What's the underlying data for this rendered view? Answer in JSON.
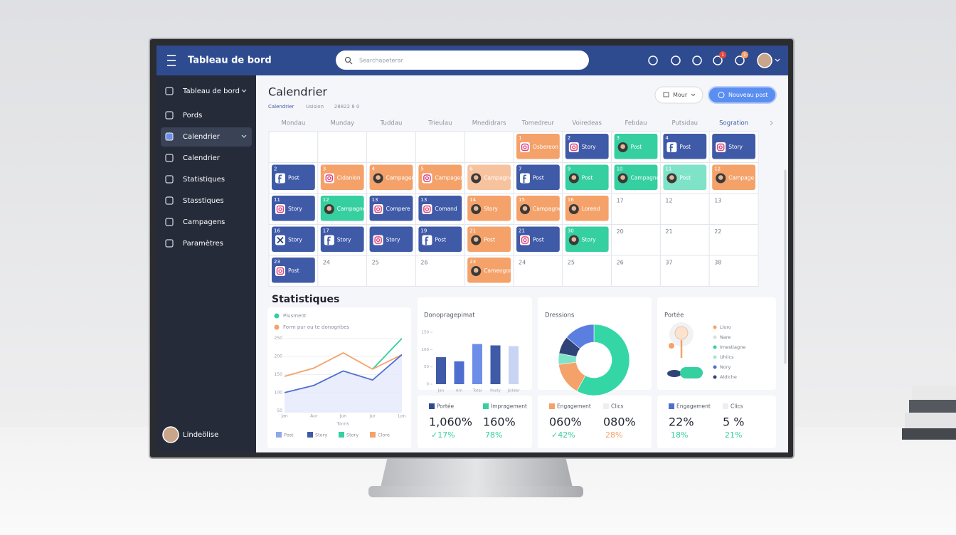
{
  "header": {
    "title": "Tableau de bord",
    "search_placeholder": "Searchapeterar",
    "badges": [
      "1",
      "1"
    ]
  },
  "sidebar": {
    "items": [
      "Tableau de bord",
      "Pords",
      "Calendrier",
      "Calendrier",
      "Statistiques",
      "Stasstiques",
      "Campagens",
      "Paramètres"
    ],
    "active": 2,
    "user": "Lindeölise"
  },
  "calendar": {
    "title": "Calendrier",
    "breadcrumb": [
      "Calendrier",
      "Usision",
      "28822 8 0"
    ],
    "view_button": "Mour",
    "new_button": "Nouveau post",
    "days": [
      "Mondau",
      "Munday",
      "Tuddau",
      "Trieulau",
      "Mnedidrars",
      "Tomedreur",
      "Voiredeas",
      "Febdau",
      "Putsidau",
      "Sogration"
    ],
    "rows": [
      [
        null,
        null,
        null,
        null,
        null,
        {
          "day": "1",
          "label": "Osbereon",
          "kind": "orange",
          "icon": "ig"
        },
        {
          "day": "2",
          "label": "Story",
          "kind": "blue",
          "icon": "ig"
        },
        {
          "day": "3",
          "label": "Post",
          "kind": "teal",
          "icon": "avatar"
        },
        {
          "day": "4",
          "label": "Post",
          "kind": "blue",
          "icon": "fb"
        },
        {
          "label": "Story",
          "kind": "blue",
          "icon": "ig"
        }
      ],
      [
        {
          "day": "2",
          "label": "Post",
          "kind": "blue",
          "icon": "fb"
        },
        {
          "day": "3",
          "label": "Cidanion",
          "kind": "orange",
          "icon": "ig"
        },
        {
          "day": "4",
          "label": "Campagen",
          "kind": "orange",
          "icon": "avatar"
        },
        {
          "day": "5",
          "label": "Campagem",
          "kind": "orange",
          "icon": "ig"
        },
        {
          "day": "6",
          "label": "Campagne",
          "kind": "peach",
          "icon": "avatar"
        },
        {
          "day": "7",
          "label": "Post",
          "kind": "blue",
          "icon": "fb"
        },
        {
          "day": "9",
          "label": "Post",
          "kind": "teal",
          "icon": "avatar"
        },
        {
          "day": "10",
          "label": "Campagne",
          "kind": "teal",
          "icon": "avatar"
        },
        {
          "day": "11",
          "label": "Post",
          "kind": "mint",
          "icon": "avatar"
        },
        {
          "day": "12",
          "label": "Campage",
          "kind": "orange",
          "icon": "avatar"
        }
      ],
      [
        {
          "day": "11",
          "label": "Story",
          "kind": "blue",
          "icon": "ig"
        },
        {
          "day": "12",
          "label": "Campagne",
          "kind": "teal",
          "icon": "avatar"
        },
        {
          "day": "13",
          "label": "Compere",
          "kind": "blue",
          "icon": "ig"
        },
        {
          "day": "13",
          "label": "Comand",
          "kind": "blue",
          "icon": "ig"
        },
        {
          "day": "14",
          "label": "Story",
          "kind": "orange",
          "icon": "avatar"
        },
        {
          "day": "15",
          "label": "Campagne",
          "kind": "orange",
          "icon": "avatar"
        },
        {
          "day": "16",
          "label": "Lorend",
          "kind": "orange",
          "icon": "avatar"
        },
        {
          "day": "17"
        },
        {
          "day": "12"
        },
        {
          "day": "13"
        }
      ],
      [
        {
          "day": "16",
          "label": "Story",
          "kind": "blue",
          "icon": "x"
        },
        {
          "day": "17",
          "label": "Story",
          "kind": "blue",
          "icon": "fb"
        },
        {
          "label": "Story",
          "kind": "blue",
          "icon": "ig"
        },
        {
          "day": "19",
          "label": "Post",
          "kind": "blue",
          "icon": "fb"
        },
        {
          "day": "21",
          "label": "Post",
          "kind": "orange",
          "icon": "avatar"
        },
        {
          "day": "21",
          "label": "Post",
          "kind": "blue",
          "icon": "ig"
        },
        {
          "day": "30",
          "label": "Story",
          "kind": "teal",
          "icon": "avatar"
        },
        {
          "day": "20"
        },
        {
          "day": "21"
        },
        {
          "day": "22"
        }
      ],
      [
        {
          "day": "23",
          "label": "Post",
          "kind": "blue",
          "icon": "ig"
        },
        {
          "day": "24"
        },
        {
          "day": "25"
        },
        {
          "day": "26"
        },
        {
          "day": "23",
          "label": "Cameogon",
          "kind": "orange",
          "icon": "avatar"
        },
        {
          "day": "24"
        },
        {
          "day": "25"
        },
        {
          "day": "26"
        },
        {
          "day": "37"
        },
        {
          "day": "38"
        }
      ]
    ]
  },
  "stats": {
    "title": "Statistiques",
    "reach": {
      "title": "Portée",
      "legend": [
        {
          "label": "Lloro",
          "color": "#f4a26a"
        },
        {
          "label": "Nare",
          "color": "#d9dde6"
        },
        {
          "label": "Imestiagne",
          "color": "#35cfa0"
        },
        {
          "label": "Uhiics",
          "color": "#9ee8d2"
        },
        {
          "label": "Nory",
          "color": "#4f6fd0"
        },
        {
          "label": "Aldiche",
          "color": "#2f4378"
        }
      ]
    },
    "cards": [
      {
        "items": [
          {
            "label": "Portée",
            "color": "#2f4b8f",
            "value": "1,060%",
            "change": "✓17%",
            "change_color": "#35cfa0"
          },
          {
            "label": "Impragement",
            "color": "#35cfa0",
            "value": "160%",
            "change": "78%",
            "change_color": "#35cfa0"
          }
        ]
      },
      {
        "items": [
          {
            "label": "Engagement",
            "color": "#f4a26a",
            "value": "060%",
            "change": "✓42%",
            "change_color": "#35cfa0"
          },
          {
            "label": "Clics",
            "color": "#eceef2",
            "value": "080%",
            "change": "28%",
            "change_color": "#f4a26a"
          }
        ]
      },
      {
        "items": [
          {
            "label": "Engagement",
            "color": "#4f6fd0",
            "value": "22%",
            "change": "18%",
            "change_color": "#35cfa0"
          },
          {
            "label": "Clics",
            "color": "#eceef2",
            "value": "5 %",
            "change": "21%",
            "change_color": "#35cfa0"
          }
        ]
      }
    ]
  },
  "chart_data": [
    {
      "type": "line",
      "categories": [
        "Jan",
        "Aur",
        "Jun",
        "Jur",
        "Lon"
      ],
      "x_label": "Tonns",
      "series": [
        {
          "name": "Plusment",
          "color": "#35cfa0",
          "values": [
            null,
            null,
            null,
            165,
            250
          ]
        },
        {
          "name": "Form pur ou te donogribes",
          "color": "#f4a26a",
          "values": [
            145,
            168,
            210,
            165,
            205
          ]
        },
        {
          "name": "",
          "color": "#4f6fd0",
          "values": [
            100,
            120,
            160,
            135,
            205
          ],
          "area": true
        }
      ],
      "footer_legend": [
        {
          "name": "Post",
          "color": "#8fa6e8"
        },
        {
          "name": "Story",
          "color": "#3f5aa7"
        },
        {
          "name": "Story",
          "color": "#35cfa0"
        },
        {
          "name": "Clore",
          "color": "#f4a26a"
        }
      ],
      "ylim": [
        25,
        275
      ],
      "yticks": [
        50,
        100,
        150,
        200,
        250
      ],
      "grid": true
    },
    {
      "type": "bar",
      "title": "Donopragepimat",
      "categories": [
        "Jan",
        "Arn",
        "Total",
        "Posty",
        "Jsilder"
      ],
      "values": [
        78,
        66,
        116,
        112,
        110
      ],
      "colors": [
        "#3f5aa7",
        "#4f6fd0",
        "#6d8ee8",
        "#3f5aa7",
        "#c9d3f3"
      ],
      "ylim": [
        0,
        150
      ],
      "yticks": [
        0,
        50,
        100,
        150
      ],
      "grid": false
    },
    {
      "type": "pie",
      "title": "Dressions",
      "values": [
        58,
        15,
        5,
        8,
        14
      ],
      "colors": [
        "#35d6a6",
        "#f4a26a",
        "#7fe3c8",
        "#2f4378",
        "#5b7fe0"
      ]
    }
  ]
}
